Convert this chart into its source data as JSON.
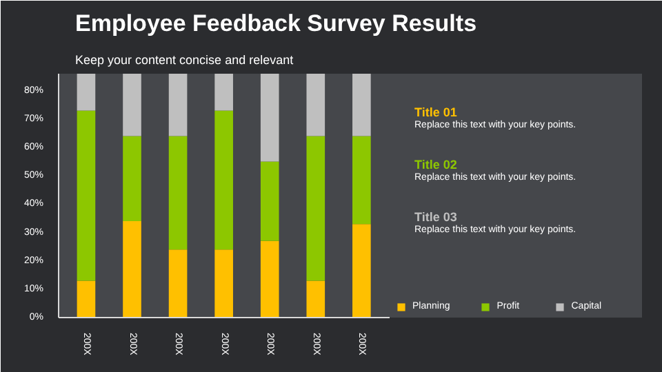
{
  "chart_data": {
    "type": "bar",
    "stacked": true,
    "title": "Employee Feedback Survey Results",
    "subtitle": "Keep your content concise and relevant",
    "categories": [
      "200X",
      "200X",
      "200X",
      "200X",
      "200X",
      "200X",
      "200X"
    ],
    "series": [
      {
        "name": "Planning",
        "color": "#ffc000",
        "values": [
          13,
          34,
          24,
          24,
          27,
          13,
          33
        ]
      },
      {
        "name": "Profit",
        "color": "#8dc700",
        "values": [
          60,
          30,
          40,
          49,
          28,
          51,
          31
        ]
      },
      {
        "name": "Capital",
        "color": "#bfbfbf",
        "values": [
          13,
          22,
          22,
          13,
          31,
          22,
          22
        ]
      }
    ],
    "ylim": [
      0,
      86
    ],
    "yticks": [
      {
        "value": 0,
        "label": "0%"
      },
      {
        "value": 10,
        "label": "10%"
      },
      {
        "value": 20,
        "label": "20%"
      },
      {
        "value": 30,
        "label": "30%"
      },
      {
        "value": 40,
        "label": "40%"
      },
      {
        "value": 50,
        "label": "50%"
      },
      {
        "value": 60,
        "label": "60%"
      },
      {
        "value": 70,
        "label": "70%"
      },
      {
        "value": 80,
        "label": "80%"
      }
    ],
    "grid": false,
    "legend": "bottom right",
    "annotations": [
      "Title 01",
      "Replace this text with your key points.",
      "Title 02",
      "Replace this text with your key points.",
      "Title 03",
      "Replace this text with your key points."
    ]
  }
}
